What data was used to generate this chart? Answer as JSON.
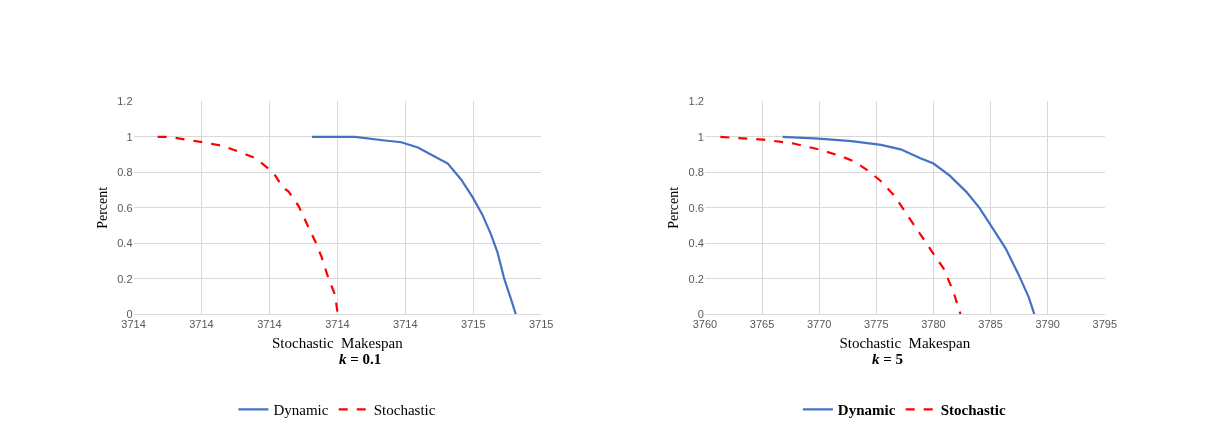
{
  "chart_data": [
    {
      "type": "line",
      "xlabel": "Stochastic  Makespan",
      "ylabel": "Percent",
      "subtitle": "k = 0.1",
      "grid": true,
      "legend": "bottom",
      "xlim": [
        3713.6,
        3714.8
      ],
      "xticks": [
        {
          "value": 3713.6,
          "label": "3714"
        },
        {
          "value": 3713.8,
          "label": "3714"
        },
        {
          "value": 3714.0,
          "label": "3714"
        },
        {
          "value": 3714.2,
          "label": "3714"
        },
        {
          "value": 3714.4,
          "label": "3714"
        },
        {
          "value": 3714.6,
          "label": "3715"
        },
        {
          "value": 3714.8,
          "label": "3715"
        }
      ],
      "ylim": [
        0,
        1.2
      ],
      "yticks": [
        0,
        0.2,
        0.4,
        0.6,
        0.8,
        1,
        1.2
      ],
      "series": [
        {
          "name": "Dynamic",
          "color": "#4472c4",
          "line_style": "solid",
          "x": [
            3714.125,
            3714.252,
            3714.34,
            3714.388,
            3714.437,
            3714.486,
            3714.525,
            3714.564,
            3714.598,
            3714.627,
            3714.652,
            3714.671,
            3714.691,
            3714.71,
            3714.725
          ],
          "values": [
            1.0,
            1.0,
            0.98,
            0.97,
            0.94,
            0.89,
            0.85,
            0.76,
            0.66,
            0.56,
            0.45,
            0.35,
            0.2,
            0.09,
            0
          ]
        },
        {
          "name": "Stochastic",
          "color": "#ff0000",
          "line_style": "dashed",
          "x": [
            3713.671,
            3713.705,
            3713.803,
            3713.861,
            3713.92,
            3713.959,
            3713.998,
            3714.018,
            3714.037,
            3714.057,
            3714.086,
            3714.115,
            3714.135,
            3714.154,
            3714.174,
            3714.193,
            3714.201
          ],
          "values": [
            1.0,
            1.0,
            0.97,
            0.95,
            0.91,
            0.88,
            0.82,
            0.78,
            0.72,
            0.69,
            0.61,
            0.49,
            0.41,
            0.32,
            0.2,
            0.11,
            0
          ]
        }
      ]
    },
    {
      "type": "line",
      "xlabel": "Stochastic  Makespan",
      "ylabel": "Percent",
      "subtitle": "k = 5",
      "grid": true,
      "legend": "bottom",
      "xlim": [
        3760,
        3795
      ],
      "xticks": [
        3760,
        3765,
        3770,
        3775,
        3780,
        3785,
        3790,
        3795
      ],
      "ylim": [
        0,
        1.2
      ],
      "yticks": [
        0,
        0.2,
        0.4,
        0.6,
        0.8,
        1,
        1.2
      ],
      "series": [
        {
          "name": "Dynamic",
          "color": "#4472c4",
          "line_style": "solid",
          "x": [
            3766.8,
            3769.96,
            3772.83,
            3775.41,
            3777.14,
            3778.86,
            3780.01,
            3781.45,
            3782.88,
            3784.03,
            3785.18,
            3786.33,
            3787.48,
            3788.34,
            3788.83
          ],
          "values": [
            1.0,
            0.99,
            0.976,
            0.955,
            0.93,
            0.88,
            0.85,
            0.78,
            0.69,
            0.6,
            0.485,
            0.37,
            0.22,
            0.096,
            0
          ]
        },
        {
          "name": "Stochastic",
          "color": "#ff0000",
          "line_style": "dashed",
          "x": [
            3761.35,
            3765.08,
            3767.67,
            3769.96,
            3771.97,
            3773.12,
            3774.27,
            3775.41,
            3776.56,
            3777.71,
            3778.86,
            3780.01,
            3780.87,
            3781.73,
            3782.37
          ],
          "values": [
            1.0,
            0.985,
            0.964,
            0.93,
            0.89,
            0.86,
            0.81,
            0.75,
            0.67,
            0.56,
            0.45,
            0.34,
            0.26,
            0.13,
            0
          ]
        }
      ]
    }
  ]
}
